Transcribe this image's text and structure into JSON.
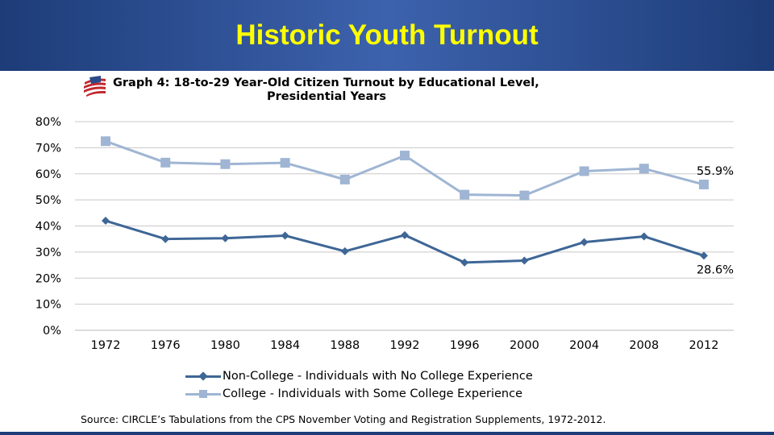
{
  "slide": {
    "title": "Historic Youth Turnout"
  },
  "logo_icon": "circle-flag-logo-icon",
  "colors": {
    "header_bg": "#2e4f96",
    "title_color": "#ffff00",
    "non_college": "#3e6696",
    "college": "#9fb5d3",
    "grid": "#c8c8c8"
  },
  "chart_data": {
    "type": "line",
    "title_line1": "Graph 4: 18-to-29 Year-Old  Citizen Turnout by Educational Level,",
    "title_line2": "Presidential Years",
    "x": [
      "1972",
      "1976",
      "1980",
      "1984",
      "1988",
      "1992",
      "1996",
      "2000",
      "2004",
      "2008",
      "2012"
    ],
    "ylim": [
      0,
      80
    ],
    "yticks": [
      "0%",
      "10%",
      "20%",
      "30%",
      "40%",
      "50%",
      "60%",
      "70%",
      "80%"
    ],
    "grid": true,
    "legend_position": "bottom",
    "series": [
      {
        "name": "Non-College - Individuals with No College Experience",
        "marker": "diamond",
        "values": [
          42,
          35,
          35.3,
          36.3,
          30.3,
          36.5,
          26,
          26.7,
          33.8,
          36,
          28.6
        ],
        "end_label": "28.6%"
      },
      {
        "name": "College - Individuals with Some College Experience",
        "marker": "square",
        "values": [
          72.5,
          64.3,
          63.7,
          64.2,
          57.8,
          67,
          52,
          51.7,
          61,
          62,
          55.9
        ],
        "end_label": "55.9%"
      }
    ]
  },
  "source": "Source:  CIRCLE’s Tabulations from the CPS November Voting and Registration Supplements, 1972-2012."
}
